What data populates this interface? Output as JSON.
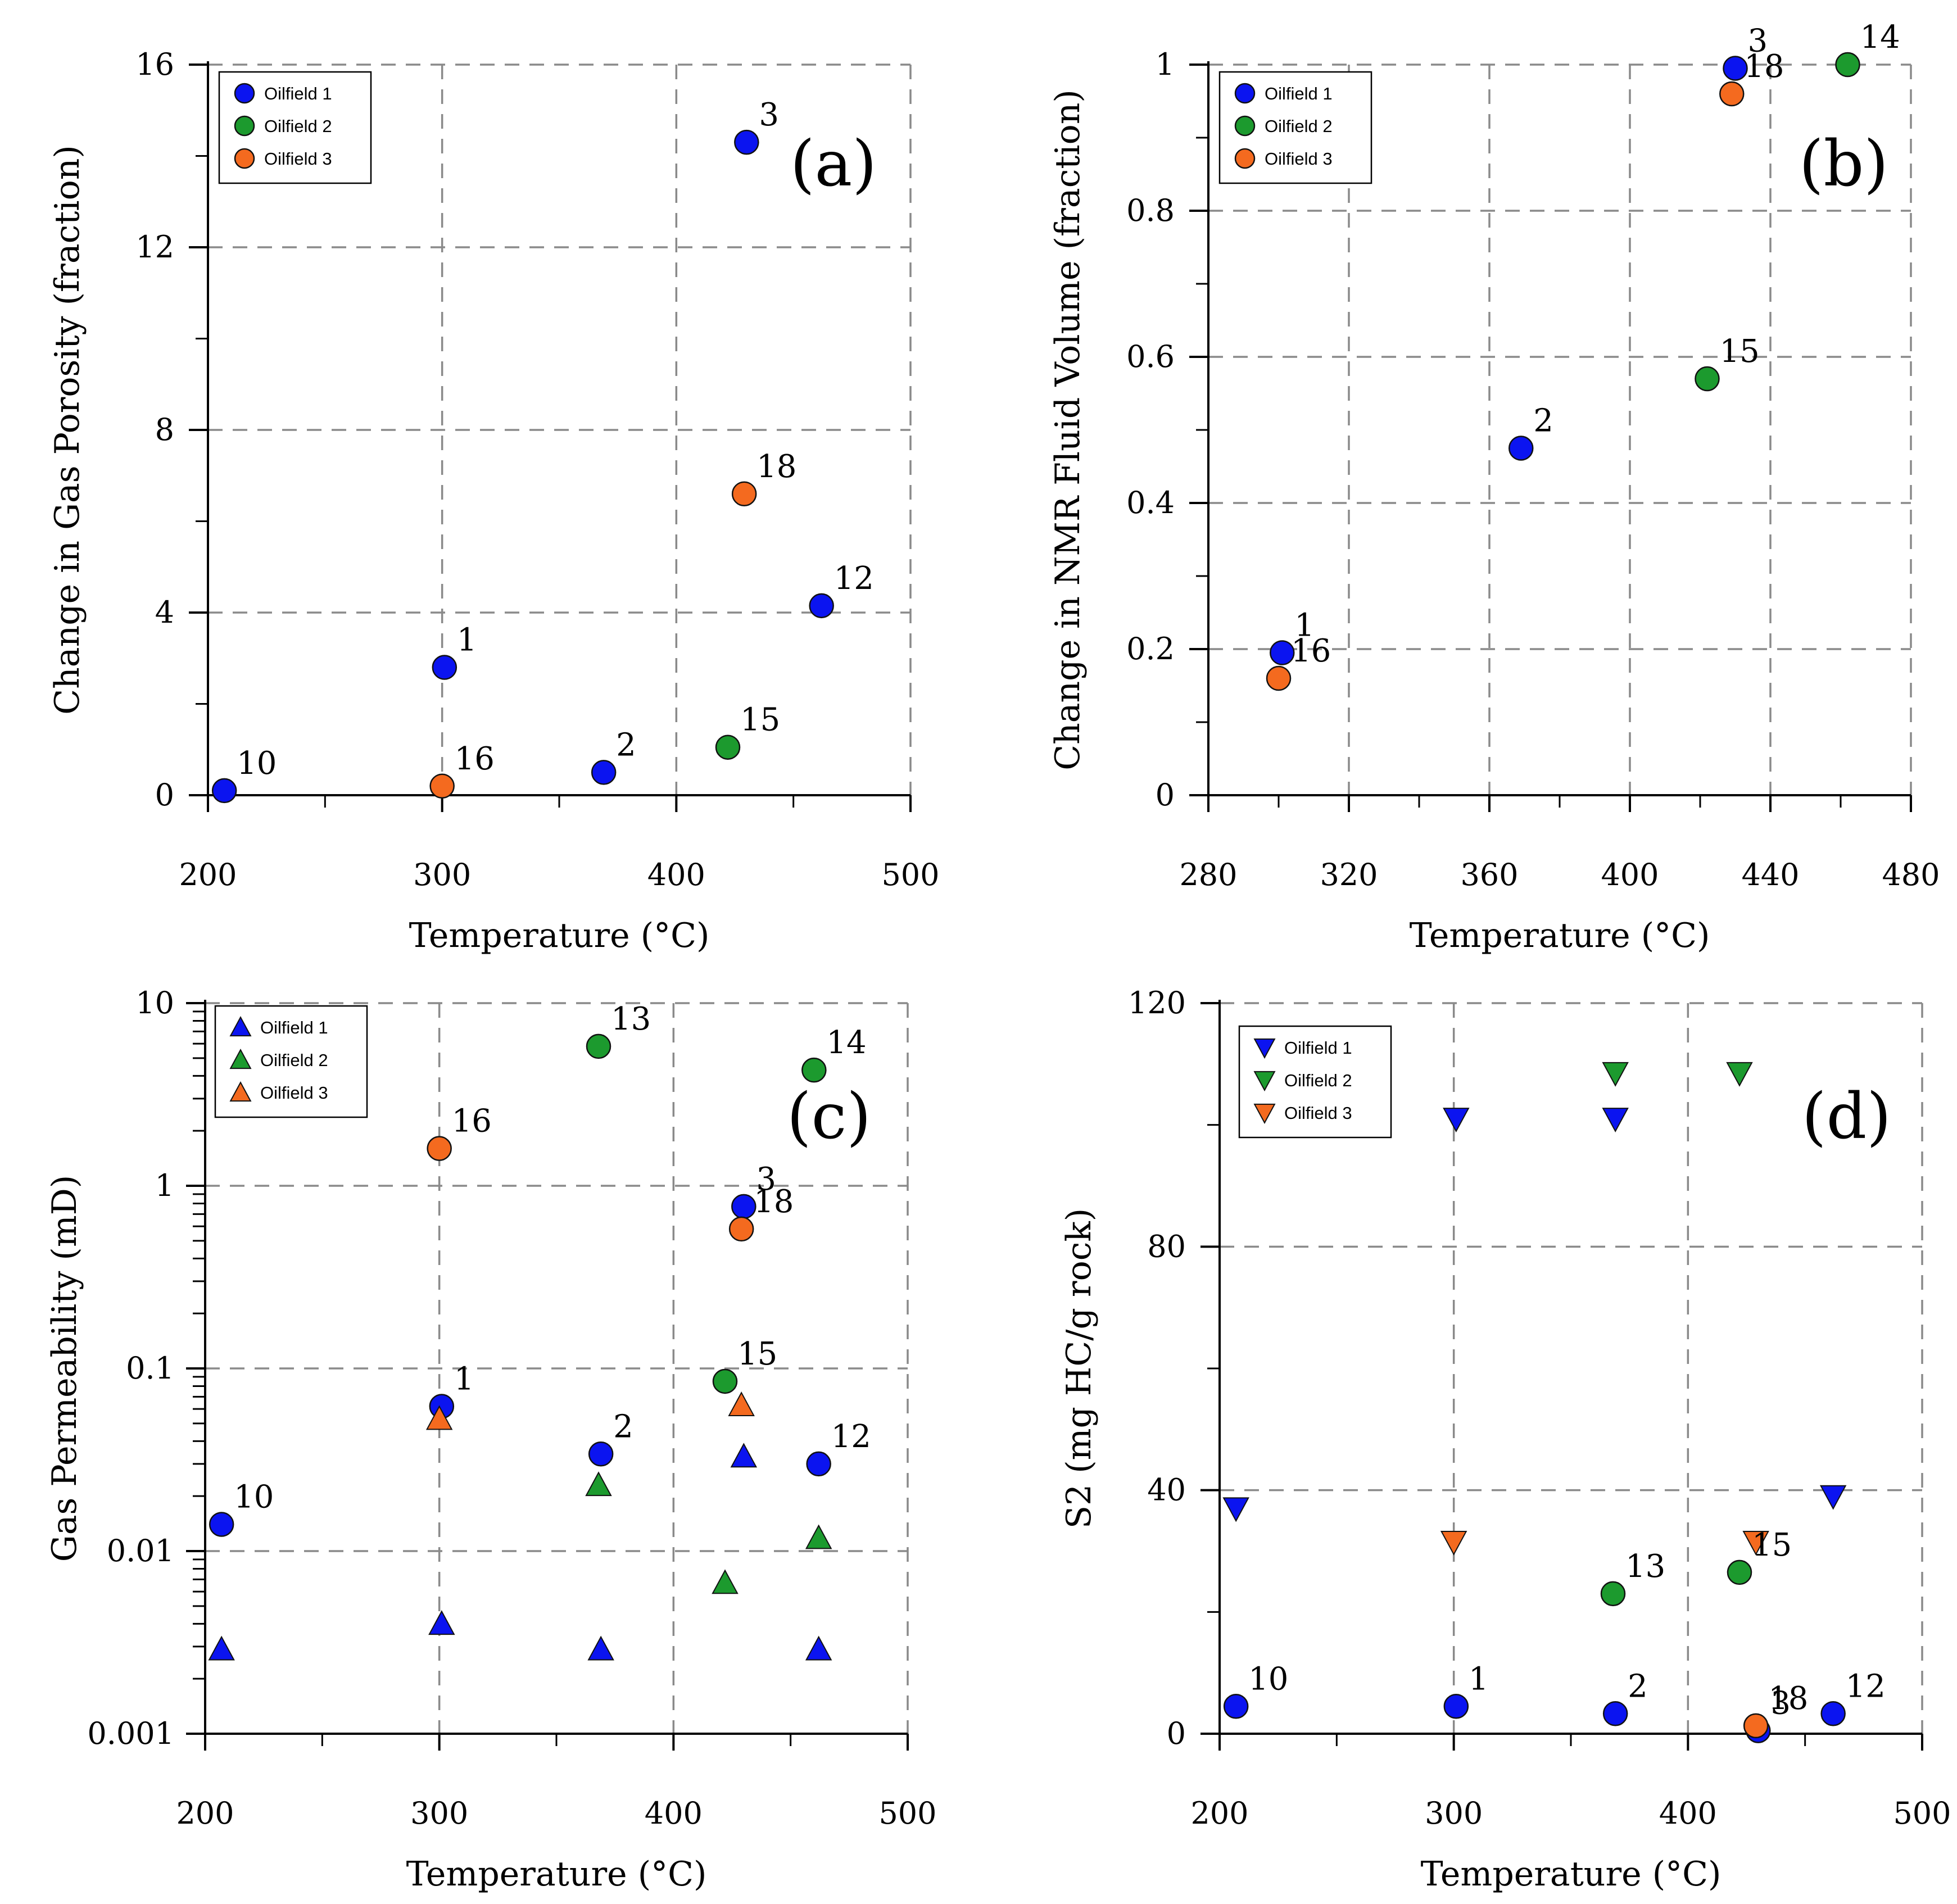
{
  "colors": {
    "oilfield_1": "#0b14f0",
    "oilfield_2": "#1c9a2e",
    "oilfield_3": "#f46a1f",
    "grid": "#8a8a8a",
    "axis": "#000000"
  },
  "chart_data": [
    {
      "panel": "(a)",
      "type": "scatter",
      "marker": "circle",
      "xlabel": "Temperature (°C)",
      "ylabel": "Change in Gas Porosity (fraction)",
      "xlim": [
        200,
        500
      ],
      "ylim": [
        0,
        16
      ],
      "yscale": "linear",
      "xticks": [
        200,
        300,
        400,
        500
      ],
      "yticks": [
        0,
        4,
        8,
        12,
        16
      ],
      "legend_position": "top-left",
      "series": [
        {
          "name": "Oilfield 1",
          "color_key": "oilfield_1",
          "points": [
            {
              "x": 207,
              "y": 0.1,
              "label": "10"
            },
            {
              "x": 301,
              "y": 2.8,
              "label": "1"
            },
            {
              "x": 369,
              "y": 0.5,
              "label": "2"
            },
            {
              "x": 430,
              "y": 14.3,
              "label": "3"
            },
            {
              "x": 462,
              "y": 4.15,
              "label": "12"
            }
          ]
        },
        {
          "name": "Oilfield 2",
          "color_key": "oilfield_2",
          "points": [
            {
              "x": 422,
              "y": 1.05,
              "label": "15"
            }
          ]
        },
        {
          "name": "Oilfield 3",
          "color_key": "oilfield_3",
          "points": [
            {
              "x": 300,
              "y": 0.2,
              "label": "16"
            },
            {
              "x": 429,
              "y": 6.6,
              "label": "18"
            }
          ]
        }
      ]
    },
    {
      "panel": "(b)",
      "type": "scatter",
      "marker": "circle",
      "xlabel": "Temperature (°C)",
      "ylabel": "Change in NMR Fluid Volume (fraction)",
      "xlim": [
        280,
        480
      ],
      "ylim": [
        0,
        1
      ],
      "yscale": "linear",
      "xticks": [
        280,
        320,
        360,
        400,
        440,
        480
      ],
      "yticks": [
        0,
        0.2,
        0.4,
        0.6,
        0.8,
        1
      ],
      "legend_position": "top-left",
      "series": [
        {
          "name": "Oilfield 1",
          "color_key": "oilfield_1",
          "points": [
            {
              "x": 301,
              "y": 0.195,
              "label": "1"
            },
            {
              "x": 369,
              "y": 0.475,
              "label": "2"
            },
            {
              "x": 430,
              "y": 0.995,
              "label": "3"
            }
          ]
        },
        {
          "name": "Oilfield 2",
          "color_key": "oilfield_2",
          "points": [
            {
              "x": 422,
              "y": 0.57,
              "label": "15"
            },
            {
              "x": 462,
              "y": 1.0,
              "label": "14"
            }
          ]
        },
        {
          "name": "Oilfield 3",
          "color_key": "oilfield_3",
          "points": [
            {
              "x": 300,
              "y": 0.16,
              "label": "16"
            },
            {
              "x": 429,
              "y": 0.96,
              "label": "18"
            }
          ]
        }
      ]
    },
    {
      "panel": "(c)",
      "type": "scatter",
      "marker": "mixed",
      "xlabel": "Temperature (°C)",
      "ylabel": "Gas Permeability (mD)",
      "xlim": [
        200,
        500
      ],
      "ylim": [
        0.001,
        10
      ],
      "yscale": "log",
      "xticks": [
        200,
        300,
        400,
        500
      ],
      "yticks": [
        0.001,
        0.01,
        0.1,
        1,
        10
      ],
      "ytick_labels": [
        "0.001",
        "0.01",
        "0.1",
        "1",
        "10"
      ],
      "legend_position": "top-left",
      "legend_marker": "triangle-up",
      "series": [
        {
          "name": "Oilfield 1",
          "color_key": "oilfield_1",
          "marker": "circle",
          "points": [
            {
              "x": 207,
              "y": 0.014,
              "label": "10"
            },
            {
              "x": 301,
              "y": 0.062,
              "label": "1"
            },
            {
              "x": 369,
              "y": 0.034,
              "label": "2"
            },
            {
              "x": 430,
              "y": 0.77,
              "label": "3"
            },
            {
              "x": 462,
              "y": 0.03,
              "label": "12"
            }
          ]
        },
        {
          "name": "Oilfield 2",
          "color_key": "oilfield_2",
          "marker": "circle",
          "points": [
            {
              "x": 422,
              "y": 0.085,
              "label": "15"
            },
            {
              "x": 368,
              "y": 5.8,
              "label": "13"
            },
            {
              "x": 460,
              "y": 4.3,
              "label": "14"
            }
          ]
        },
        {
          "name": "Oilfield 3",
          "color_key": "oilfield_3",
          "marker": "circle",
          "points": [
            {
              "x": 300,
              "y": 1.6,
              "label": "16"
            },
            {
              "x": 429,
              "y": 0.58,
              "label": "18"
            }
          ]
        },
        {
          "name": "Oilfield 1",
          "color_key": "oilfield_1",
          "marker": "triangle-up",
          "points": [
            {
              "x": 207,
              "y": 0.0029
            },
            {
              "x": 301,
              "y": 0.004
            },
            {
              "x": 369,
              "y": 0.0029
            },
            {
              "x": 430,
              "y": 0.033
            },
            {
              "x": 462,
              "y": 0.0029
            }
          ]
        },
        {
          "name": "Oilfield 2",
          "color_key": "oilfield_2",
          "marker": "triangle-up",
          "points": [
            {
              "x": 368,
              "y": 0.023
            },
            {
              "x": 422,
              "y": 0.0067
            },
            {
              "x": 462,
              "y": 0.0118
            }
          ]
        },
        {
          "name": "Oilfield 3",
          "color_key": "oilfield_3",
          "marker": "triangle-up",
          "points": [
            {
              "x": 300,
              "y": 0.053
            },
            {
              "x": 429,
              "y": 0.063
            }
          ]
        }
      ]
    },
    {
      "panel": "(d)",
      "type": "scatter",
      "marker": "mixed",
      "xlabel": "Temperature (°C)",
      "ylabel": "S2 (mg HC/g rock)",
      "xlim": [
        200,
        500
      ],
      "ylim": [
        0,
        120
      ],
      "yscale": "linear",
      "xticks": [
        200,
        300,
        400,
        500
      ],
      "yticks": [
        0,
        40,
        80,
        120
      ],
      "legend_position": "top-left",
      "legend_marker": "triangle-down",
      "series": [
        {
          "name": "Oilfield 1",
          "color_key": "oilfield_1",
          "marker": "triangle-down",
          "points": [
            {
              "x": 207,
              "y": 37
            },
            {
              "x": 301,
              "y": 101
            },
            {
              "x": 369,
              "y": 101
            },
            {
              "x": 462,
              "y": 39
            }
          ]
        },
        {
          "name": "Oilfield 2",
          "color_key": "oilfield_2",
          "marker": "triangle-down",
          "points": [
            {
              "x": 369,
              "y": 108.5
            },
            {
              "x": 422,
              "y": 108.5
            }
          ]
        },
        {
          "name": "Oilfield 3",
          "color_key": "oilfield_3",
          "marker": "triangle-down",
          "points": [
            {
              "x": 300,
              "y": 31.5
            },
            {
              "x": 429,
              "y": 31.5
            }
          ]
        },
        {
          "name": "Oilfield 1",
          "color_key": "oilfield_1",
          "marker": "circle",
          "points": [
            {
              "x": 207,
              "y": 4.5,
              "label": "10"
            },
            {
              "x": 301,
              "y": 4.5,
              "label": "1"
            },
            {
              "x": 369,
              "y": 3.3,
              "label": "2"
            },
            {
              "x": 430,
              "y": 0.5,
              "label": "3"
            },
            {
              "x": 462,
              "y": 3.3,
              "label": "12"
            }
          ]
        },
        {
          "name": "Oilfield 2",
          "color_key": "oilfield_2",
          "marker": "circle",
          "points": [
            {
              "x": 368,
              "y": 23,
              "label": "13"
            },
            {
              "x": 422,
              "y": 26.5,
              "label": "15"
            }
          ]
        },
        {
          "name": "Oilfield 3",
          "color_key": "oilfield_3",
          "marker": "circle",
          "points": [
            {
              "x": 429,
              "y": 1.3,
              "label": "18"
            }
          ]
        }
      ]
    }
  ]
}
